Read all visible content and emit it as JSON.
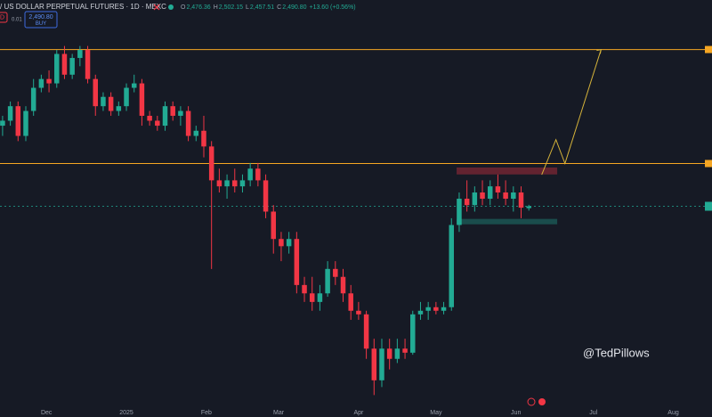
{
  "header": {
    "title": "/ US DOLLAR PERPETUAL FUTURES · 1D · MEXC",
    "ohlc": [
      [
        "O",
        "2,476.36"
      ],
      [
        "H",
        "2,502.15"
      ],
      [
        "L",
        "2,457.51"
      ],
      [
        "C",
        "2,490.80"
      ]
    ],
    "change": "+13.60 (+0.56%)",
    "sell": "D",
    "spread": "0.01",
    "buy_price": "2,490.80",
    "buy": "BUY"
  },
  "watermark": "@TedPillows",
  "chart_data": {
    "type": "candlestick",
    "log": true,
    "up_color": "#22ab94",
    "down_color": "#f23645",
    "xlim": [
      -49,
      227
    ],
    "ylim": [
      1330,
      4730
    ],
    "xticks": [
      {
        "value": -31,
        "label": "Dec"
      },
      {
        "value": 0,
        "label": "2025"
      },
      {
        "value": 31,
        "label": "Feb"
      },
      {
        "value": 59,
        "label": "Mar"
      },
      {
        "value": 90,
        "label": "Apr"
      },
      {
        "value": 120,
        "label": "May"
      },
      {
        "value": 151,
        "label": "Jun"
      },
      {
        "value": 181,
        "label": "Jul"
      },
      {
        "value": 212,
        "label": "Aug"
      }
    ],
    "x": [
      -48,
      -45,
      -42,
      -39,
      -36,
      -33,
      -30,
      -27,
      -24,
      -21,
      -18,
      -15,
      -12,
      -9,
      -6,
      -3,
      0,
      3,
      6,
      9,
      12,
      15,
      18,
      21,
      24,
      27,
      30,
      33,
      36,
      39,
      42,
      45,
      48,
      51,
      54,
      57,
      60,
      63,
      66,
      69,
      72,
      75,
      78,
      81,
      84,
      87,
      90,
      93,
      96,
      99,
      102,
      105,
      108,
      111,
      114,
      117,
      120,
      123,
      126,
      129,
      132,
      135,
      138,
      141,
      144,
      147,
      150,
      153,
      156
    ],
    "candles": [
      [
        3200,
        3300,
        3100,
        3250
      ],
      [
        3250,
        3450,
        3200,
        3400
      ],
      [
        3400,
        3450,
        3050,
        3100
      ],
      [
        3100,
        3400,
        3050,
        3350
      ],
      [
        3350,
        3700,
        3300,
        3600
      ],
      [
        3600,
        3750,
        3550,
        3700
      ],
      [
        3700,
        3800,
        3550,
        3650
      ],
      [
        3650,
        4050,
        3600,
        4000
      ],
      [
        4000,
        4100,
        3700,
        3750
      ],
      [
        3750,
        4000,
        3700,
        3950
      ],
      [
        3950,
        4100,
        3850,
        4050
      ],
      [
        4050,
        4100,
        3650,
        3700
      ],
      [
        3700,
        3750,
        3300,
        3400
      ],
      [
        3400,
        3550,
        3350,
        3500
      ],
      [
        3500,
        3550,
        3300,
        3350
      ],
      [
        3350,
        3450,
        3300,
        3400
      ],
      [
        3400,
        3650,
        3350,
        3600
      ],
      [
        3600,
        3750,
        3550,
        3650
      ],
      [
        3650,
        3700,
        3200,
        3300
      ],
      [
        3300,
        3350,
        3200,
        3250
      ],
      [
        3250,
        3300,
        3150,
        3200
      ],
      [
        3200,
        3450,
        3150,
        3400
      ],
      [
        3400,
        3450,
        3250,
        3300
      ],
      [
        3300,
        3400,
        3200,
        3350
      ],
      [
        3350,
        3400,
        3050,
        3100
      ],
      [
        3100,
        3200,
        3050,
        3150
      ],
      [
        3150,
        3300,
        2900,
        3000
      ],
      [
        3000,
        3050,
        2050,
        2700
      ],
      [
        2700,
        2800,
        2600,
        2650
      ],
      [
        2650,
        2750,
        2550,
        2700
      ],
      [
        2700,
        2800,
        2600,
        2650
      ],
      [
        2650,
        2750,
        2600,
        2700
      ],
      [
        2700,
        2850,
        2650,
        2800
      ],
      [
        2800,
        2850,
        2650,
        2700
      ],
      [
        2700,
        2750,
        2400,
        2450
      ],
      [
        2450,
        2500,
        2150,
        2250
      ],
      [
        2250,
        2300,
        2100,
        2200
      ],
      [
        2200,
        2300,
        2150,
        2250
      ],
      [
        2250,
        2300,
        1900,
        1950
      ],
      [
        1950,
        2000,
        1850,
        1900
      ],
      [
        1900,
        2000,
        1800,
        1850
      ],
      [
        1850,
        1950,
        1800,
        1900
      ],
      [
        1900,
        2100,
        1880,
        2050
      ],
      [
        2050,
        2100,
        1950,
        2000
      ],
      [
        2000,
        2050,
        1850,
        1900
      ],
      [
        1900,
        1950,
        1750,
        1800
      ],
      [
        1800,
        1850,
        1750,
        1780
      ],
      [
        1780,
        1800,
        1550,
        1600
      ],
      [
        1600,
        1650,
        1385,
        1450
      ],
      [
        1450,
        1650,
        1420,
        1600
      ],
      [
        1600,
        1650,
        1500,
        1550
      ],
      [
        1550,
        1650,
        1530,
        1600
      ],
      [
        1600,
        1650,
        1550,
        1580
      ],
      [
        1580,
        1800,
        1570,
        1780
      ],
      [
        1780,
        1850,
        1750,
        1800
      ],
      [
        1800,
        1850,
        1750,
        1820
      ],
      [
        1820,
        1850,
        1780,
        1800
      ],
      [
        1800,
        1850,
        1780,
        1820
      ],
      [
        1820,
        2400,
        1800,
        2350
      ],
      [
        2350,
        2600,
        2300,
        2550
      ],
      [
        2550,
        2700,
        2450,
        2500
      ],
      [
        2500,
        2650,
        2450,
        2600
      ],
      [
        2600,
        2700,
        2500,
        2550
      ],
      [
        2550,
        2700,
        2500,
        2650
      ],
      [
        2650,
        2750,
        2550,
        2600
      ],
      [
        2600,
        2700,
        2500,
        2550
      ],
      [
        2550,
        2650,
        2450,
        2600
      ],
      [
        2600,
        2650,
        2400,
        2480
      ],
      [
        2476.36,
        2502.15,
        2457.51,
        2490.8
      ]
    ],
    "levels": [
      4055,
      2845
    ],
    "level_color": "#f5a623",
    "last_price": 2490.8,
    "zones": [
      {
        "x": [
          128,
          167
        ],
        "y": [
          2750,
          2810
        ],
        "color": "#f23645"
      },
      {
        "x": [
          128,
          167
        ],
        "y": [
          2355,
          2395
        ],
        "color": "#22ab94"
      }
    ],
    "projection": {
      "x": [
        161,
        166.5,
        170,
        184
      ],
      "values": [
        2748,
        3064,
        2845,
        4055
      ],
      "color": "#d4b23a"
    }
  }
}
